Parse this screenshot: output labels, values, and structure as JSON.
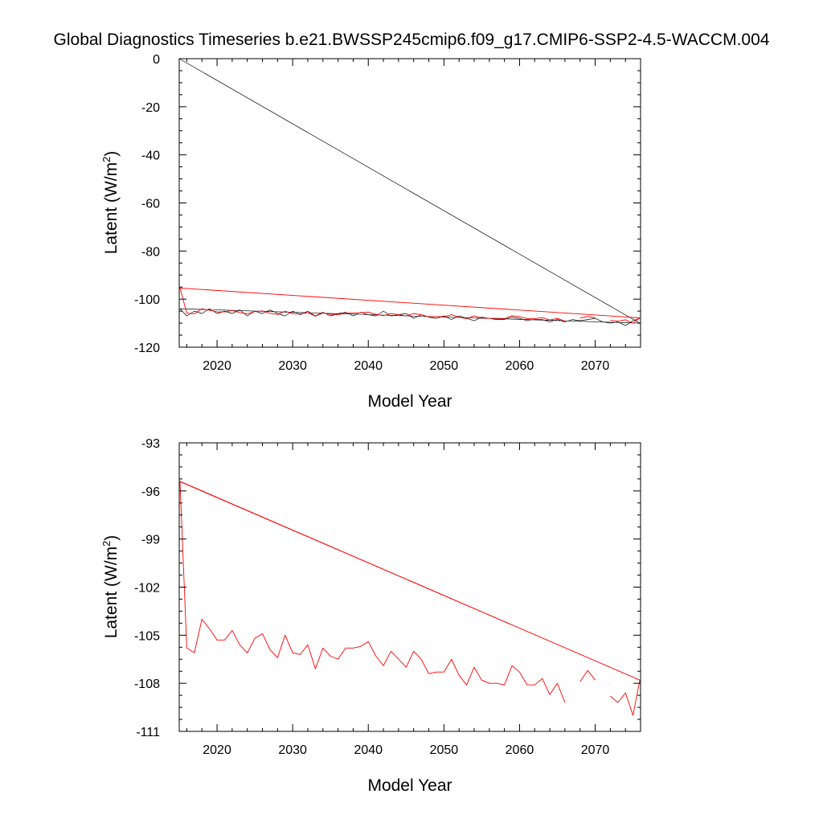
{
  "title": "Global Diagnostics Timeseries b.e21.BWSSP245cmip6.f09_g17.CMIP6-SSP2-4.5-WACCM.004",
  "colors": {
    "monthly": "#000000",
    "annual": "#ff0000"
  },
  "chart_data": [
    {
      "type": "line",
      "xlabel": "Model Year",
      "ylabel": "Latent (W/m2)",
      "ylabel_main": "Latent (W/m",
      "ylabel_sup": "2",
      "ylabel_close": ")",
      "xlim": [
        2015,
        2076
      ],
      "ylim": [
        -120,
        0
      ],
      "xticks": [
        2020,
        2030,
        2040,
        2050,
        2060,
        2070
      ],
      "yticks": [
        0,
        -20,
        -40,
        -60,
        -80,
        -100,
        -120
      ],
      "xtick_labels": [
        "2020",
        "2030",
        "2040",
        "2050",
        "2060",
        "2070"
      ],
      "ytick_labels": [
        "0",
        "-20",
        "-40",
        "-60",
        "-80",
        "-100",
        "-120"
      ],
      "grid": false,
      "series": [
        {
          "style": "thin black line",
          "x": [
            2015.0,
            2075.9,
            2015.1,
            2016.0,
            2017.0,
            2018.0,
            2019.0,
            2020.0,
            2021.0,
            2022.0,
            2023.0,
            2024.0,
            2025.0,
            2026.0,
            2027.0,
            2028.0,
            2029.0,
            2030.0,
            2031.0,
            2032.0,
            2033.0,
            2034.0,
            2035.0,
            2036.0,
            2037.0,
            2038.0,
            2039.0,
            2040.0,
            2041.0,
            2042.0,
            2043.0,
            2044.0,
            2045.0,
            2046.0,
            2047.0,
            2048.0,
            2049.0,
            2050.0,
            2051.0,
            2052.0,
            2053.0,
            2054.0,
            2055.0,
            2056.0,
            2057.0,
            2058.0,
            2059.0,
            2060.0,
            2061.0,
            2062.0,
            2063.0,
            2064.0,
            2065.0,
            2066.0,
            2067.0,
            2068.0,
            2069.0,
            2070.0,
            2071.0,
            2072.0,
            2073.0,
            2074.0,
            2075.0,
            2075.9
          ],
          "y": [
            0,
            -110,
            -104,
            -107,
            -105,
            -106,
            -104,
            -106,
            -105,
            -106,
            -104.5,
            -107,
            -105,
            -106,
            -104.5,
            -106,
            -107,
            -105,
            -106.5,
            -105,
            -107,
            -105.5,
            -107,
            -106,
            -105.5,
            -107,
            -105.5,
            -106.5,
            -107,
            -105,
            -107,
            -106.5,
            -106,
            -108,
            -106.5,
            -107.5,
            -108,
            -107,
            -108.5,
            -107,
            -108,
            -109,
            -107.5,
            -108,
            -108.5,
            -108.5,
            -107.5,
            -108,
            -109,
            -108.5,
            -108.5,
            -109.5,
            -108.5,
            -109.5,
            -108.5,
            -109,
            -108.5,
            -108,
            -109.5,
            -110,
            -109.5,
            -111,
            -109,
            -108
          ]
        },
        {
          "style": "red annual mean line",
          "x": [
            2015.0,
            2075.9,
            2015.1,
            2016.0,
            2017.0,
            2018.0,
            2019.0,
            2020.0,
            2021.0,
            2022.0,
            2023.0,
            2024.0,
            2025.0,
            2026.0,
            2027.0,
            2028.0,
            2029.0,
            2030.0,
            2031.0,
            2032.0,
            2033.0,
            2034.0,
            2035.0,
            2036.0,
            2037.0,
            2038.0,
            2039.0,
            2040.0,
            2041.0,
            2042.0,
            2043.0,
            2044.0,
            2045.0,
            2046.0,
            2047.0,
            2048.0,
            2049.0,
            2050.0,
            2051.0,
            2052.0,
            2053.0,
            2054.0,
            2055.0,
            2056.0,
            2057.0,
            2058.0,
            2059.0,
            2060.0,
            2061.0,
            2062.0,
            2063.0,
            2064.0,
            2065.0,
            2066.0,
            2067.0,
            2068.0,
            2069.0,
            2070.0,
            2071.0,
            2072.0,
            2073.0,
            2074.0,
            2075.0,
            2075.9
          ],
          "y": [
            -95.4,
            -107.8,
            -95.4,
            -105.8,
            -106.1,
            -104.0,
            -104.6,
            -105.3,
            -105.3,
            -104.7,
            -105.6,
            -106.1,
            -105.2,
            -104.9,
            -105.9,
            -106.4,
            -105.0,
            -106.1,
            -106.2,
            -105.6,
            -107.1,
            -105.8,
            -106.3,
            -106.5,
            -105.8,
            -105.8,
            -105.7,
            -105.4,
            -106.3,
            -106.9,
            -106.0,
            -106.5,
            -107.0,
            -106.0,
            -106.5,
            -107.4,
            -107.3,
            -107.3,
            -106.5,
            -107.5,
            -108.1,
            -107.0,
            -107.8,
            -108.0,
            -108.0,
            -108.1,
            -106.9,
            -107.3,
            -108.1,
            -108.1,
            -107.7,
            -108.7,
            -108.0,
            -109.2,
            null,
            -107.9,
            -107.2,
            -107.8,
            null,
            -108.8,
            -109.2,
            -108.6,
            -110.0,
            -107.8
          ]
        }
      ]
    },
    {
      "type": "line",
      "xlabel": "Model Year",
      "ylabel": "Latent (W/m2)",
      "ylabel_main": "Latent (W/m",
      "ylabel_sup": "2",
      "ylabel_close": ")",
      "xlim": [
        2015,
        2076
      ],
      "ylim": [
        -111,
        -93
      ],
      "xticks": [
        2020,
        2030,
        2040,
        2050,
        2060,
        2070
      ],
      "yticks": [
        -93,
        -96,
        -99,
        -102,
        -105,
        -108,
        -111
      ],
      "xtick_labels": [
        "2020",
        "2030",
        "2040",
        "2050",
        "2060",
        "2070"
      ],
      "ytick_labels": [
        "-93",
        "-96",
        "-99",
        "-102",
        "-105",
        "-108",
        "-111"
      ],
      "grid": false,
      "series": [
        {
          "style": "red annual mean line",
          "x": [
            2015.0,
            2075.9,
            2015.1,
            2016.0,
            2017.0,
            2018.0,
            2019.0,
            2020.0,
            2021.0,
            2022.0,
            2023.0,
            2024.0,
            2025.0,
            2026.0,
            2027.0,
            2028.0,
            2029.0,
            2030.0,
            2031.0,
            2032.0,
            2033.0,
            2034.0,
            2035.0,
            2036.0,
            2037.0,
            2038.0,
            2039.0,
            2040.0,
            2041.0,
            2042.0,
            2043.0,
            2044.0,
            2045.0,
            2046.0,
            2047.0,
            2048.0,
            2049.0,
            2050.0,
            2051.0,
            2052.0,
            2053.0,
            2054.0,
            2055.0,
            2056.0,
            2057.0,
            2058.0,
            2059.0,
            2060.0,
            2061.0,
            2062.0,
            2063.0,
            2064.0,
            2065.0,
            2066.0,
            2067.0,
            2068.0,
            2069.0,
            2070.0,
            2071.0,
            2072.0,
            2073.0,
            2074.0,
            2075.0,
            2075.9
          ],
          "y": [
            -95.4,
            -107.8,
            -95.4,
            -105.8,
            -106.1,
            -104.0,
            -104.6,
            -105.3,
            -105.3,
            -104.7,
            -105.6,
            -106.1,
            -105.2,
            -104.9,
            -105.9,
            -106.4,
            -105.0,
            -106.1,
            -106.2,
            -105.6,
            -107.1,
            -105.8,
            -106.3,
            -106.5,
            -105.8,
            -105.8,
            -105.7,
            -105.4,
            -106.3,
            -106.9,
            -106.0,
            -106.5,
            -107.0,
            -106.0,
            -106.5,
            -107.4,
            -107.3,
            -107.3,
            -106.5,
            -107.5,
            -108.1,
            -107.0,
            -107.8,
            -108.0,
            -108.0,
            -108.1,
            -106.9,
            -107.3,
            -108.1,
            -108.1,
            -107.7,
            -108.7,
            -108.0,
            -109.2,
            null,
            -107.9,
            -107.2,
            -107.8,
            null,
            -108.8,
            -109.2,
            -108.6,
            -110.0,
            -107.8
          ]
        }
      ]
    }
  ]
}
